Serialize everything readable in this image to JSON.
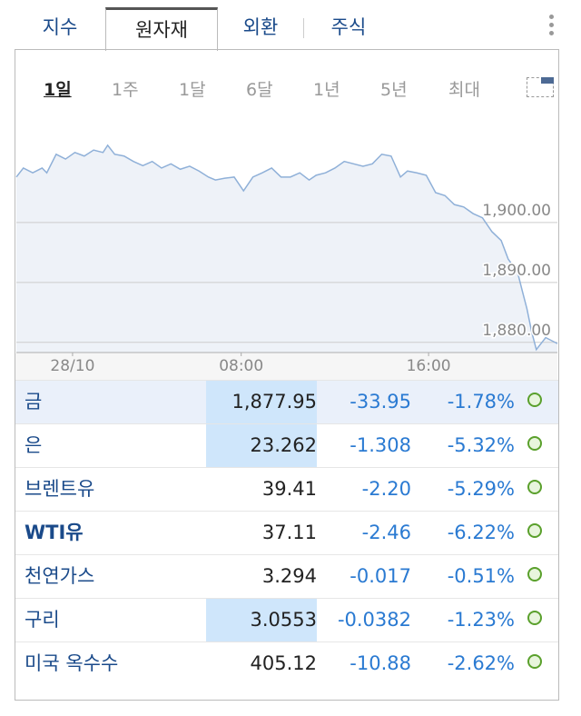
{
  "tabs": [
    "지수",
    "원자재",
    "외환",
    "주식"
  ],
  "periods": [
    "1일",
    "1주",
    "1달",
    "6달",
    "1년",
    "5년",
    "최대"
  ],
  "chart_data": {
    "type": "line",
    "x": [
      -1.6,
      -1.3,
      -0.9,
      -0.5,
      -0.3,
      0.1,
      0.5,
      0.9,
      1.3,
      1.7,
      2.1,
      2.3,
      2.6,
      3.0,
      3.4,
      3.8,
      4.2,
      4.6,
      5.0,
      5.4,
      5.8,
      6.2,
      6.6,
      6.9,
      7.3,
      7.7,
      8.1,
      8.5,
      8.9,
      9.3,
      9.7,
      10.1,
      10.5,
      10.9,
      11.2,
      11.6,
      12.0,
      12.4,
      12.8,
      13.2,
      13.6,
      14.0,
      14.4,
      14.8,
      15.1,
      15.5,
      15.9,
      16.3,
      16.7,
      17.1,
      17.5,
      17.9,
      18.3,
      18.7,
      19.1,
      19.4,
      19.8,
      20.0,
      20.2,
      20.4,
      20.6,
      21.0,
      21.5
    ],
    "series": [
      {
        "color": "#8fb0d8",
        "values": [
          1907.6,
          1909.1,
          1908.3,
          1909.1,
          1908.3,
          1911.4,
          1910.6,
          1911.7,
          1911.1,
          1912.1,
          1911.7,
          1912.9,
          1911.4,
          1911.1,
          1910.2,
          1909.5,
          1910.2,
          1909.1,
          1909.8,
          1908.9,
          1909.4,
          1908.6,
          1907.6,
          1907.1,
          1907.4,
          1907.6,
          1905.3,
          1907.6,
          1908.3,
          1909.1,
          1907.6,
          1907.6,
          1908.3,
          1907.1,
          1907.9,
          1908.3,
          1909.1,
          1910.2,
          1909.8,
          1909.4,
          1909.8,
          1911.4,
          1911.1,
          1907.6,
          1908.6,
          1908.3,
          1907.9,
          1905.0,
          1904.5,
          1903.0,
          1902.6,
          1901.5,
          1900.8,
          1898.5,
          1897.0,
          1893.9,
          1891.7,
          1888.6,
          1885.6,
          1881.8,
          1878.8,
          1880.8,
          1879.8
        ]
      }
    ],
    "xlim": [
      -1.6,
      21.5
    ],
    "xticks": [
      {
        "value": 0.8,
        "label": "28/10"
      },
      {
        "value": 8,
        "label": "08:00"
      },
      {
        "value": 16,
        "label": "16:00"
      }
    ],
    "ylim": [
      1878.3,
      1914.4
    ],
    "yticks": [
      {
        "value": 1880,
        "label": "1,880.00"
      },
      {
        "value": 1890,
        "label": "1,890.00"
      },
      {
        "value": 1900,
        "label": "1,900.00"
      }
    ],
    "grid": true
  },
  "table": {
    "rows": [
      [
        "금",
        "1,877.95",
        "-33.95",
        "-1.78%"
      ],
      [
        "은",
        "23.262",
        "-1.308",
        "-5.32%"
      ],
      [
        "브렌트유",
        "39.41",
        "-2.20",
        "-5.29%"
      ],
      [
        "WTI유",
        "37.11",
        "-2.46",
        "-6.22%"
      ],
      [
        "천연가스",
        "3.294",
        "-0.017",
        "-0.51%"
      ],
      [
        "구리",
        "3.0553",
        "-0.0382",
        "-1.23%"
      ],
      [
        "미국 옥수수",
        "405.12",
        "-10.88",
        "-2.62%"
      ]
    ]
  }
}
